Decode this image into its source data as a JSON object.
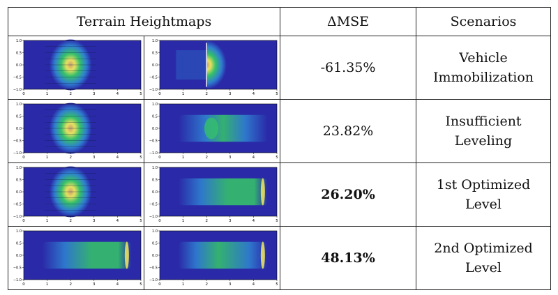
{
  "headers": {
    "heightmaps": "Terrain Heightmaps",
    "mse": "ΔMSE",
    "scenarios": "Scenarios"
  },
  "rows": [
    {
      "mse": "-61.35%",
      "scenario_line1": "Vehicle",
      "scenario_line2": "Immobilization",
      "bold": false
    },
    {
      "mse": "23.82%",
      "scenario_line1": "Insufficient",
      "scenario_line2": "Leveling",
      "bold": false
    },
    {
      "mse": "26.20%",
      "scenario_line1": "1st Optimized",
      "scenario_line2": "Level",
      "bold": true
    },
    {
      "mse": "48.13%",
      "scenario_line1": "2nd Optimized",
      "scenario_line2": "Level",
      "bold": true
    }
  ],
  "plot_axes": {
    "x_ticks": [
      "0",
      "1",
      "2",
      "3",
      "4",
      "5"
    ],
    "y_ticks": [
      "1.0",
      "0.5",
      "0.0",
      "−0.5",
      "−1.0"
    ]
  },
  "colors": {
    "background": "#2a2aa8",
    "mid": "#2f7fd0",
    "green": "#35c06a",
    "yellow": "#e8e060"
  }
}
